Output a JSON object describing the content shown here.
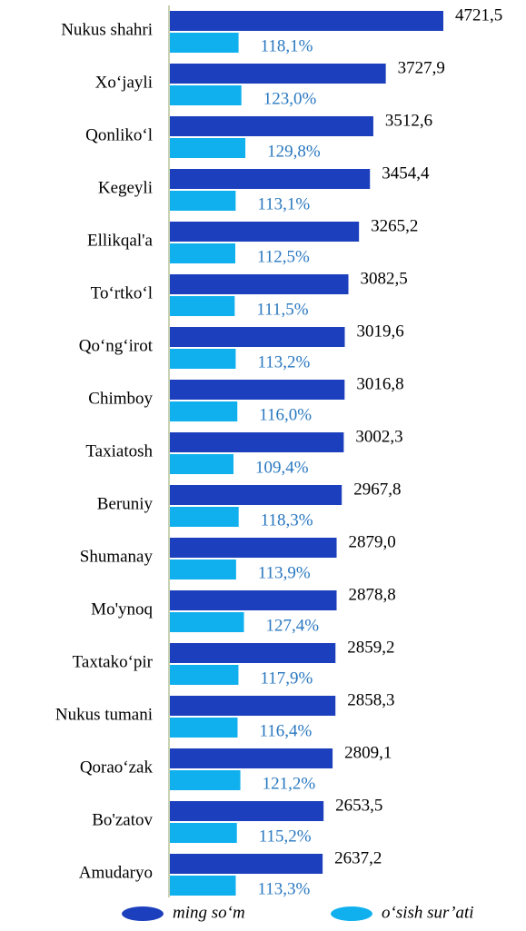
{
  "chart_data": {
    "type": "bar",
    "orientation": "horizontal",
    "categories": [
      "Nukus shahri",
      "Xo‘jayli",
      "Qonliko‘l",
      "Kegeyli",
      "Ellikqal'a",
      "To‘rtko‘l",
      "Qo‘ng‘irot",
      "Chimboy",
      "Taxiatosh",
      "Beruniy",
      "Shumanay",
      "Mo'ynoq",
      "Taxtako‘pir",
      "Nukus tumani",
      "Qorao‘zak",
      "Bo'zatov",
      "Amudaryo"
    ],
    "series": [
      {
        "name": "ming so‘m",
        "color": "#1c3fbd",
        "values": [
          4721.5,
          3727.9,
          3512.6,
          3454.4,
          3265.2,
          3082.5,
          3019.6,
          3016.8,
          3002.3,
          2967.8,
          2879.0,
          2878.8,
          2859.2,
          2858.3,
          2809.1,
          2653.5,
          2637.2
        ],
        "value_labels": [
          "4721,5",
          "3727,9",
          "3512,6",
          "3454,4",
          "3265,2",
          "3082,5",
          "3019,6",
          "3016,8",
          "3002,3",
          "2967,8",
          "2879,0",
          "2878,8",
          "2859,2",
          "2858,3",
          "2809,1",
          "2653,5",
          "2637,2"
        ]
      },
      {
        "name": "o‘sish sur’ati",
        "color": "#10b0ee",
        "values": [
          118.1,
          123.0,
          129.8,
          113.1,
          112.5,
          111.5,
          113.2,
          116.0,
          109.4,
          118.3,
          113.9,
          127.4,
          117.9,
          116.4,
          121.2,
          115.2,
          113.3
        ],
        "value_labels": [
          "118,1%",
          "123,0%",
          "129,8%",
          "113,1%",
          "112,5%",
          "111,5%",
          "113,2%",
          "116,0%",
          "109,4%",
          "118,3%",
          "113,9%",
          "127,4%",
          "117,9%",
          "116,4%",
          "121,2%",
          "115,2%",
          "113,3%"
        ]
      }
    ],
    "legend": "bottom"
  }
}
